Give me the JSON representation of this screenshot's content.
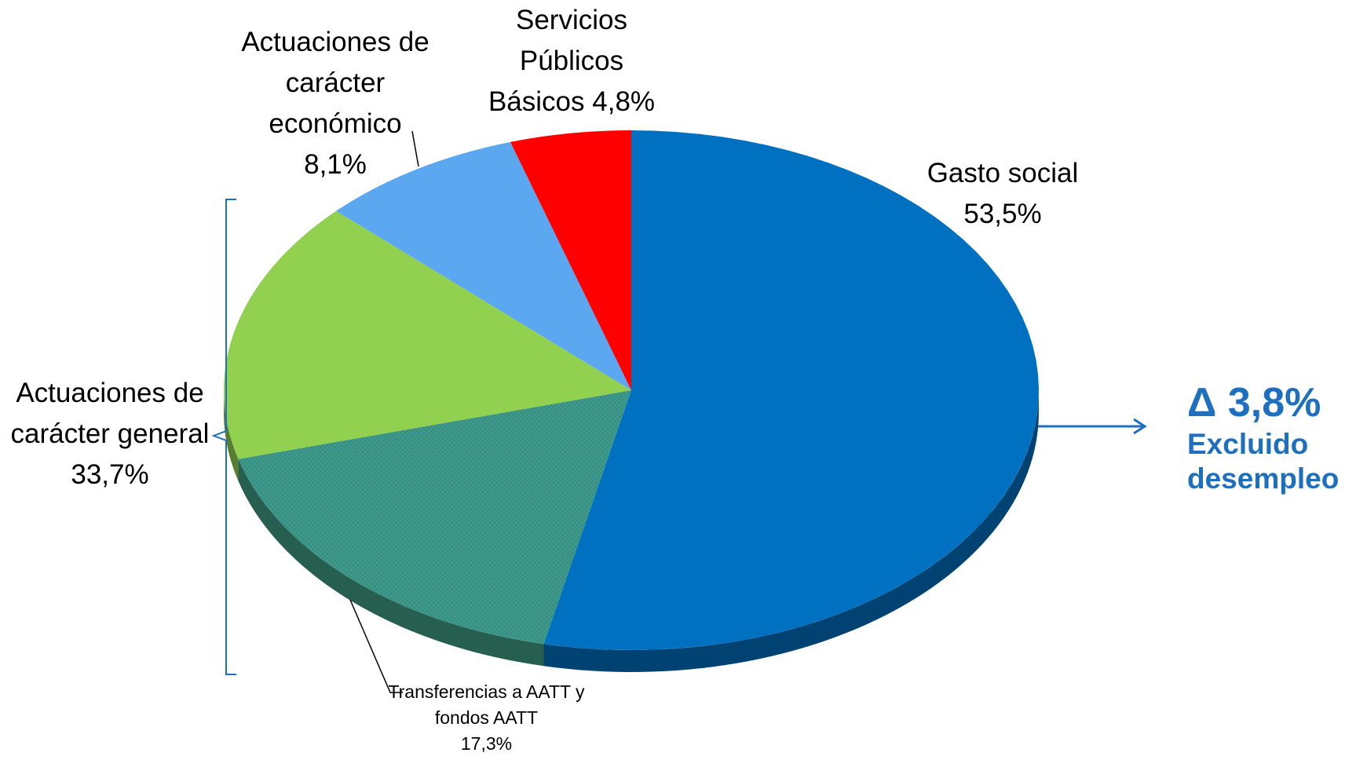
{
  "chart_data": {
    "type": "pie",
    "categories": [
      "Gasto social",
      "Transferencias a AATT y fondos AATT",
      null,
      "Actuaciones de carácter económico",
      "Servicios Públicos Básicos"
    ],
    "values": [
      53.5,
      17.3,
      16.4,
      8.1,
      4.8
    ],
    "value_labels": [
      "53,5%",
      "17,3%",
      null,
      "8,1%",
      "4,8%"
    ],
    "colors": [
      "#0070c0",
      "#3f9d86",
      "#92d050",
      "#5ba8f0",
      "#ff0000"
    ],
    "group": {
      "label": "Actuaciones de carácter general",
      "value": 33.7,
      "value_label": "33,7%"
    },
    "annotation": {
      "label": "Δ 3,8%",
      "text": "Excluido desempleo"
    }
  }
}
